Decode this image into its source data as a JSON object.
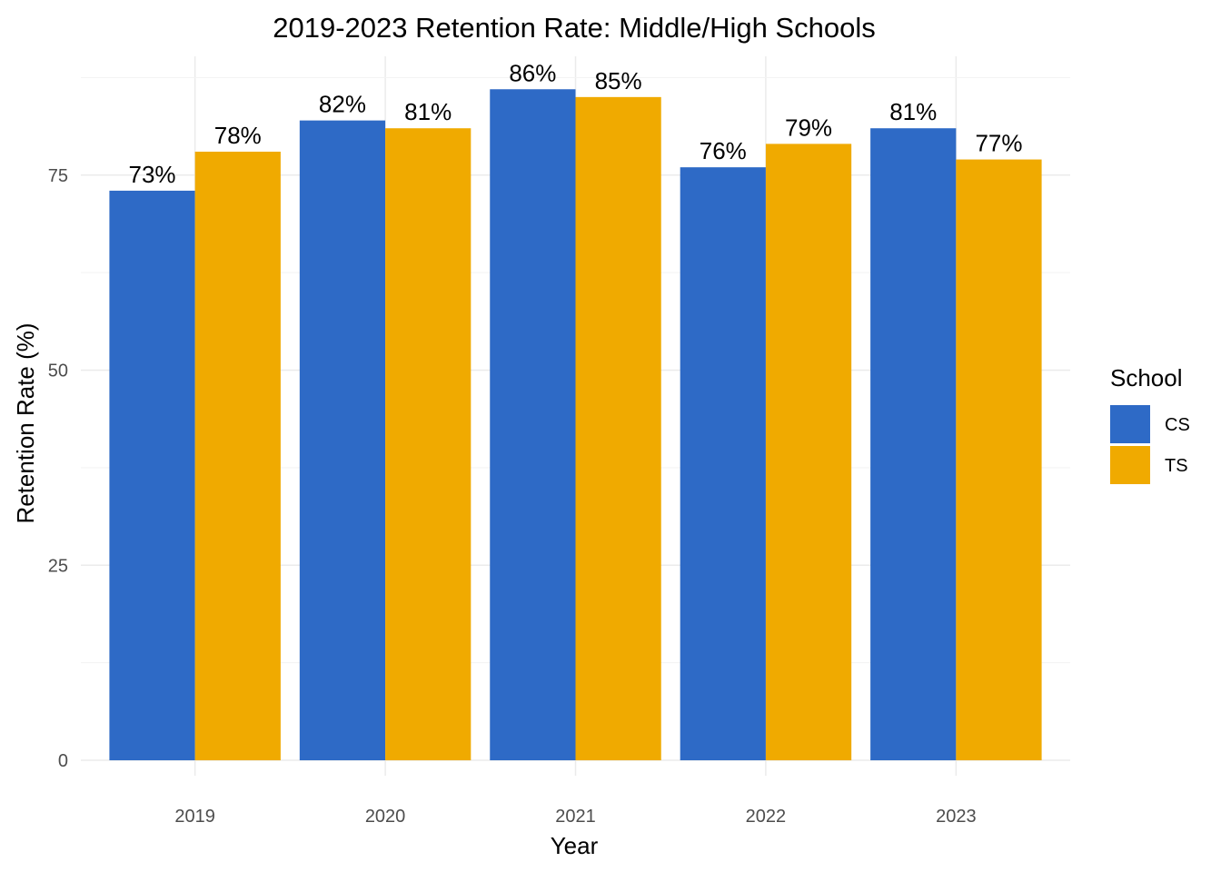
{
  "chart_data": {
    "type": "bar",
    "title": "2019-2023 Retention Rate: Middle/High Schools",
    "xlabel": "Year",
    "ylabel": "Retention Rate (%)",
    "categories": [
      "2019",
      "2020",
      "2021",
      "2022",
      "2023"
    ],
    "series": [
      {
        "name": "CS",
        "color": "#2E6AC6",
        "values": [
          73,
          82,
          86,
          76,
          81
        ],
        "labels": [
          "73%",
          "82%",
          "86%",
          "76%",
          "81%"
        ]
      },
      {
        "name": "TS",
        "color": "#F0AA00",
        "values": [
          78,
          81,
          85,
          79,
          77
        ],
        "labels": [
          "78%",
          "81%",
          "85%",
          "79%",
          "77%"
        ]
      }
    ],
    "ylim": [
      0,
      90
    ],
    "yticks": [
      0,
      25,
      50,
      75
    ],
    "ytick_labels": [
      "0",
      "25",
      "50",
      "75"
    ],
    "grid": true,
    "legend": {
      "title": "School",
      "placement": "right"
    }
  }
}
